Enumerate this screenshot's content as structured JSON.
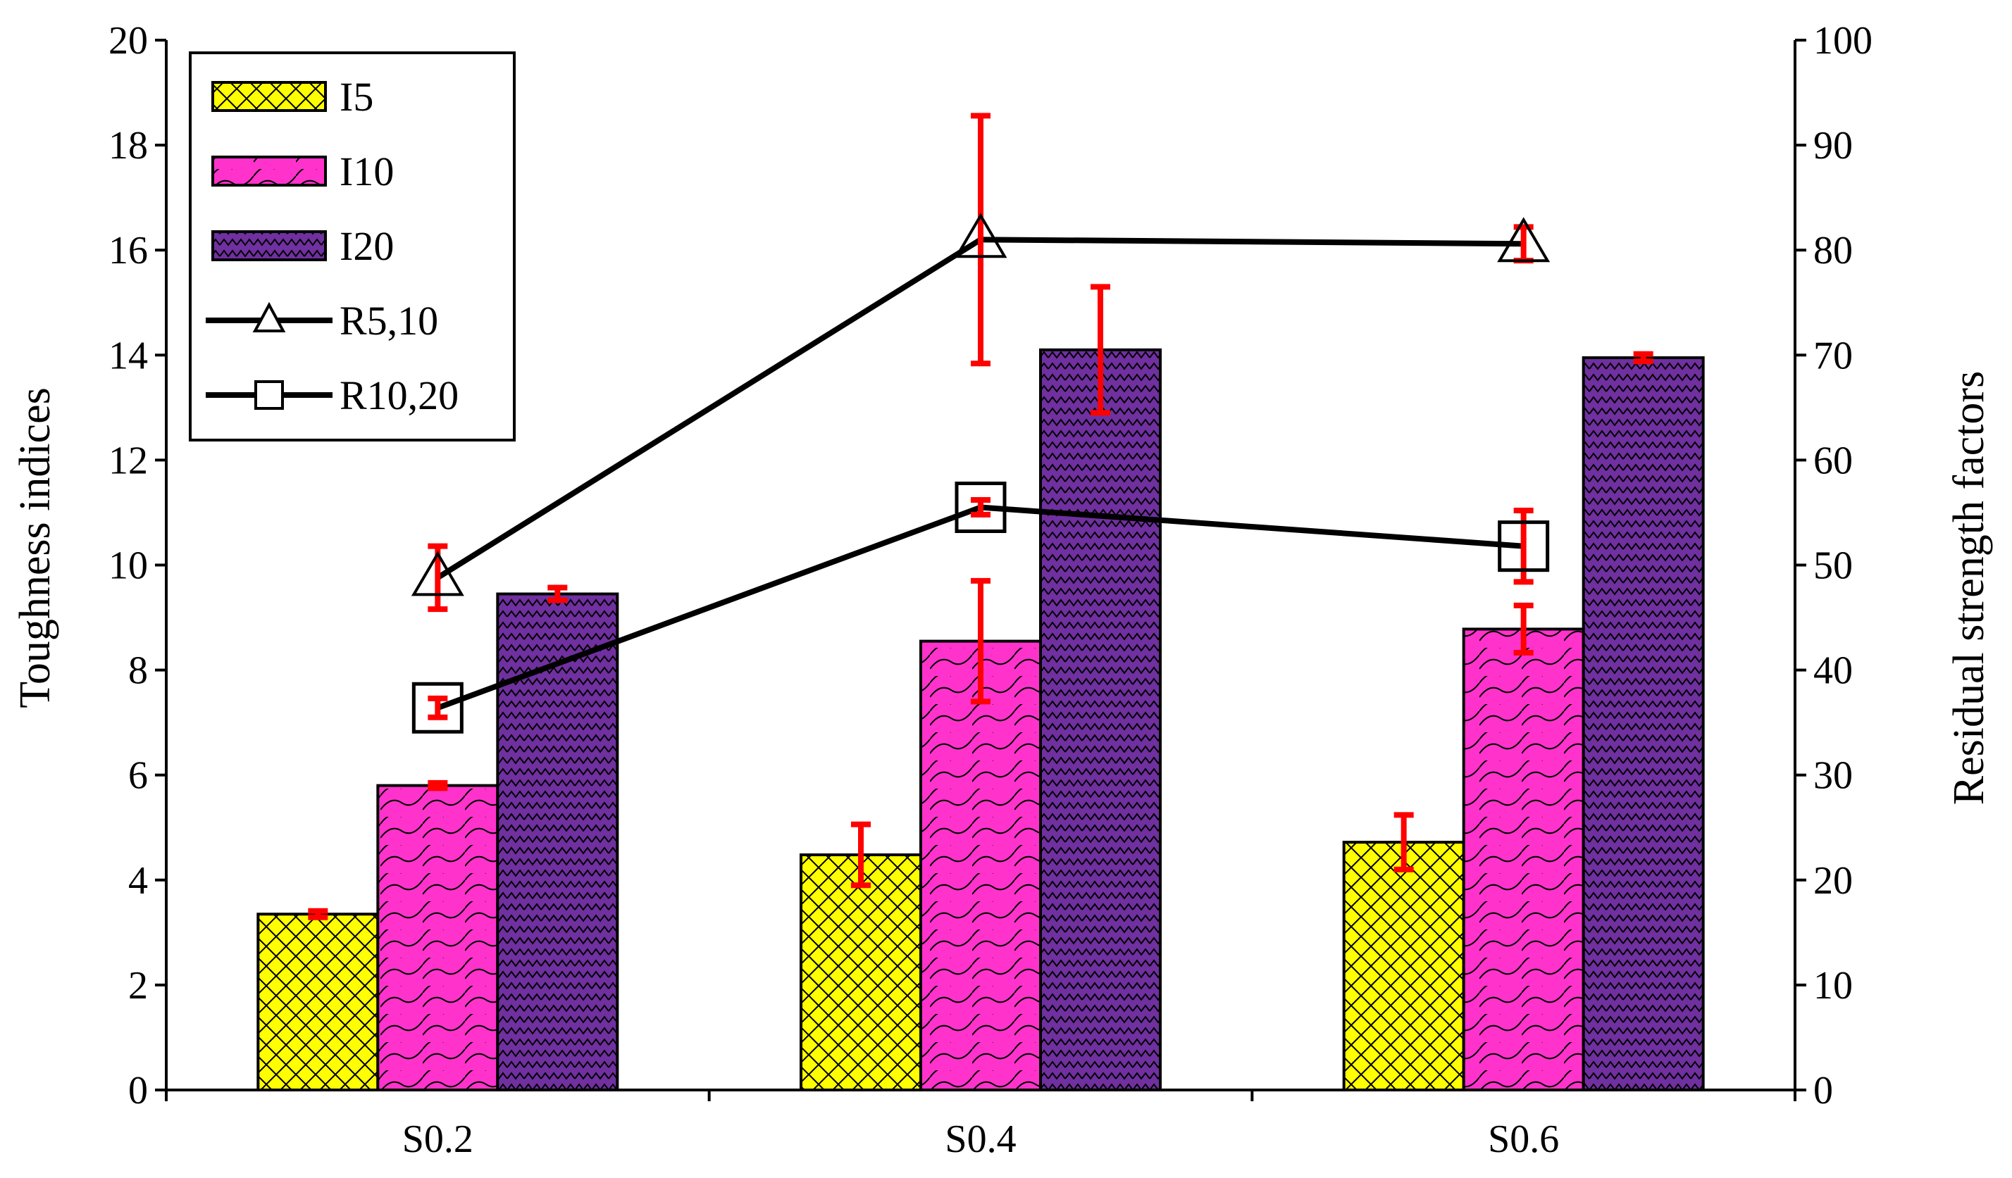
{
  "chart_data": {
    "type": "bar",
    "categories": [
      "S0.2",
      "S0.4",
      "S0.6"
    ],
    "left_axis": {
      "label": "Toughness indices",
      "range": [
        0,
        20
      ],
      "ticks": [
        "0",
        "2",
        "4",
        "6",
        "8",
        "10",
        "12",
        "14",
        "16",
        "18",
        "20"
      ]
    },
    "right_axis": {
      "label": "Residual strength factors",
      "range": [
        0,
        100
      ],
      "ticks": [
        "0",
        "10",
        "20",
        "30",
        "40",
        "50",
        "60",
        "70",
        "80",
        "90",
        "100"
      ]
    },
    "bar_series": [
      {
        "name": "I5",
        "fill": "#FFFF00",
        "pattern": "diamond",
        "values": [
          3.35,
          4.48,
          4.72
        ],
        "errors": [
          0.06,
          0.58,
          0.52
        ]
      },
      {
        "name": "I10",
        "fill": "#FF33CC",
        "pattern": "scale",
        "values": [
          5.8,
          8.55,
          8.78
        ],
        "errors": [
          0.05,
          1.15,
          0.45
        ]
      },
      {
        "name": "I20",
        "fill": "#7030A0",
        "pattern": "zigzag",
        "values": [
          9.45,
          14.1,
          13.95
        ],
        "errors": [
          0.12,
          1.2,
          0.07
        ]
      }
    ],
    "line_series": [
      {
        "name": "R5,10",
        "marker": "triangle",
        "axis": "right",
        "values": [
          48.8,
          81.0,
          80.6
        ],
        "errors": [
          3.0,
          11.8,
          1.6
        ]
      },
      {
        "name": "R10,20",
        "marker": "square",
        "axis": "right",
        "values": [
          36.4,
          55.5,
          51.8
        ],
        "errors": [
          0.9,
          0.7,
          3.4
        ]
      }
    ],
    "error_bar_color": "#FF0000",
    "legend": {
      "position": "top-left",
      "entries": [
        "I5",
        "I10",
        "I20",
        "R5,10",
        "R10,20"
      ]
    }
  }
}
